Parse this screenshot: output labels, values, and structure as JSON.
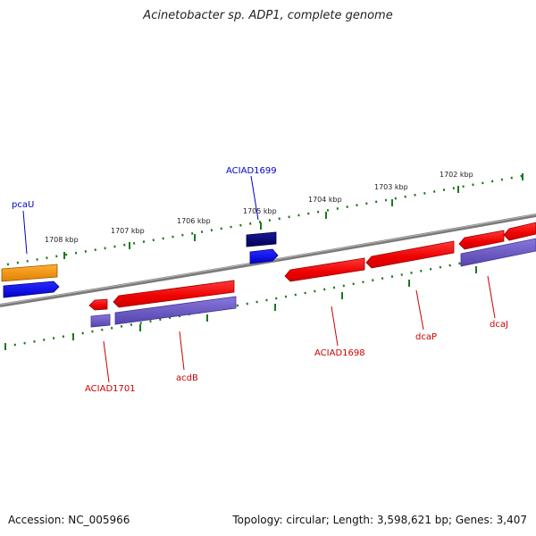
{
  "title": "Acinetobacter sp. ADP1, complete genome",
  "footer": {
    "accession": "Accession: NC_005966",
    "summary": "Topology: circular; Length: 3,598,621 bp; Genes: 3,407"
  },
  "scale_labels": [
    "1708 kbp",
    "1707 kbp",
    "1706 kbp",
    "1705 kbp",
    "1704 kbp",
    "1703 kbp",
    "1702 kbp"
  ],
  "gene_labels": [
    {
      "name": "pcaU",
      "color": "#0000cc"
    },
    {
      "name": "ACIAD1699",
      "color": "#0000cc"
    },
    {
      "name": "ACIAD1701",
      "color": "#cc0000"
    },
    {
      "name": "acdB",
      "color": "#cc0000"
    },
    {
      "name": "ACIAD1698",
      "color": "#cc0000"
    },
    {
      "name": "dcaP",
      "color": "#cc0000"
    },
    {
      "name": "dcaJ",
      "color": "#cc0000"
    }
  ],
  "colors": {
    "backbone": "#808080",
    "ticks": "#1a7a1a",
    "forward_gene": "#ff1a1a",
    "reverse_gene": "#0000ff",
    "forward_cds": "#7766cc",
    "highlight_gene": "#ff9900",
    "selected_gene": "#000077"
  }
}
